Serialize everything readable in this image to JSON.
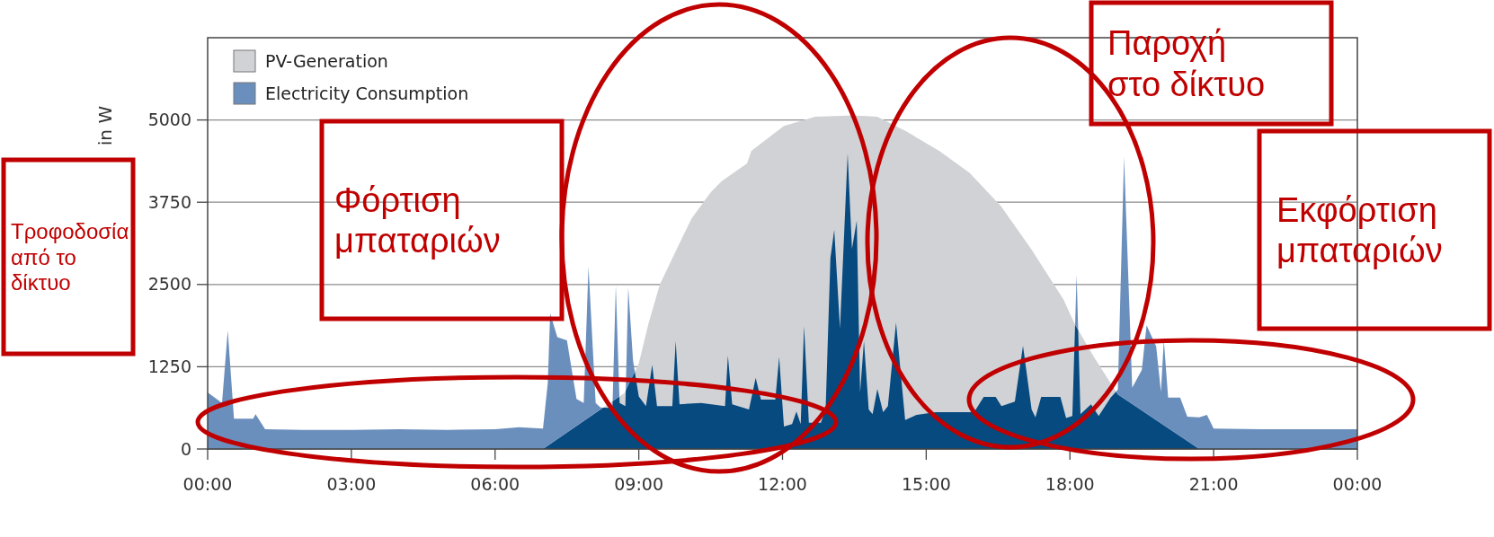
{
  "chart_data": {
    "type": "area",
    "ylabel": "in W",
    "legend": "top left",
    "grid": "y",
    "xlim": [
      0,
      24
    ],
    "ylim": [
      0,
      6250
    ],
    "xticks": [
      {
        "value": 0,
        "label": "00:00"
      },
      {
        "value": 3,
        "label": "03:00"
      },
      {
        "value": 6,
        "label": "06:00"
      },
      {
        "value": 9,
        "label": "09:00"
      },
      {
        "value": 12,
        "label": "12:00"
      },
      {
        "value": 15,
        "label": "15:00"
      },
      {
        "value": 18,
        "label": "18:00"
      },
      {
        "value": 21,
        "label": "21:00"
      },
      {
        "value": 24,
        "label": "00:00"
      }
    ],
    "yticks": [
      0,
      1250,
      2500,
      3750,
      5000
    ],
    "series": [
      {
        "name": "PV-Generation",
        "color": "#d0d2d5",
        "x": [
          0,
          7,
          7.5,
          8,
          8.4,
          8.7,
          9,
          9.2,
          9.44,
          9.8,
          10.1,
          10.5,
          10.73,
          11.26,
          11.35,
          12.03,
          12.68,
          13.5,
          13.98,
          14.6,
          15.27,
          15.9,
          16.56,
          17.2,
          17.86,
          18.1,
          18.5,
          19,
          19.46,
          19.93,
          20.45,
          20.7,
          24
        ],
        "values": [
          0,
          0,
          null,
          null,
          null,
          850,
          1300,
          1900,
          2500,
          3050,
          3500,
          3900,
          4070,
          4340,
          4530,
          4910,
          5050,
          5070,
          5050,
          4820,
          4530,
          4200,
          3690,
          3030,
          2280,
          1900,
          1400,
          830,
          null,
          null,
          null,
          0,
          0
        ]
      },
      {
        "name": "Electricity Consumption",
        "color": "#6b8fbd",
        "x": [
          0,
          0.3,
          0.42,
          0.55,
          0.95,
          1,
          1.2,
          2,
          3,
          4,
          5,
          6,
          6.5,
          7,
          7.1,
          7.15,
          7.3,
          7.5,
          7.7,
          7.85,
          7.95,
          8.1,
          8.2,
          8.45,
          8.52,
          8.6,
          8.72,
          8.78,
          8.88,
          9,
          9.15,
          9.28,
          9.38,
          9.7,
          9.77,
          9.85,
          10.3,
          10.8,
          10.86,
          10.95,
          11.3,
          11.44,
          11.55,
          11.85,
          11.93,
          12.03,
          12.2,
          12.29,
          12.38,
          12.45,
          12.55,
          12.8,
          12.9,
          13,
          13.08,
          13.2,
          13.36,
          13.45,
          13.55,
          13.62,
          13.7,
          13.8,
          13.88,
          13.98,
          14.1,
          14.2,
          14.37,
          14.56,
          14.8,
          15.2,
          15.6,
          16,
          16.2,
          16.45,
          16.57,
          16.85,
          17.02,
          17.2,
          17.28,
          17.4,
          17.8,
          17.92,
          18.05,
          18.14,
          18.22,
          18.44,
          18.6,
          18.85,
          19,
          19.13,
          19.3,
          19.5,
          19.6,
          19.8,
          19.9,
          19.96,
          20.05,
          20.3,
          20.45,
          20.7,
          20.86,
          21,
          22,
          23,
          24
        ],
        "values": [
          860,
          700,
          1800,
          460,
          460,
          530,
          300,
          290,
          290,
          300,
          290,
          300,
          330,
          310,
          1000,
          2060,
          1700,
          1650,
          760,
          700,
          2770,
          700,
          630,
          620,
          2480,
          700,
          650,
          2450,
          1340,
          800,
          650,
          1280,
          650,
          650,
          1640,
          680,
          700,
          650,
          1420,
          680,
          600,
          1080,
          750,
          750,
          1400,
          340,
          380,
          570,
          380,
          1870,
          400,
          400,
          600,
          2900,
          3330,
          1830,
          4490,
          3040,
          3470,
          860,
          1640,
          600,
          530,
          910,
          560,
          650,
          1920,
          440,
          520,
          560,
          560,
          560,
          790,
          790,
          650,
          720,
          1570,
          600,
          480,
          790,
          790,
          470,
          500,
          2650,
          530,
          680,
          500,
          780,
          900,
          4440,
          930,
          1200,
          1880,
          1560,
          870,
          1650,
          780,
          780,
          490,
          480,
          520,
          310,
          300,
          300,
          300
        ]
      }
    ],
    "annotations": [
      "Τροφοδοσία από το δίκτυο",
      "Φόρτιση μπαταριών",
      "Παροχή στο δίκτυο",
      "Εκφόρτιση μπαταριών"
    ]
  }
}
